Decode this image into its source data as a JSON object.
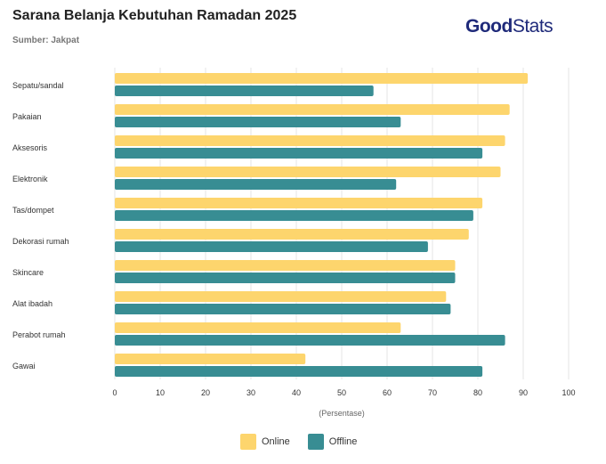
{
  "header": {
    "title": "Sarana Belanja Kebutuhan Ramadan 2025",
    "subtitle": "Sumber: Jakpat",
    "logo": "GoodStats"
  },
  "chart_data": {
    "type": "bar",
    "orientation": "horizontal",
    "title": "Sarana Belanja Kebutuhan Ramadan 2025",
    "xlabel": "(Persentase)",
    "xlim": [
      0,
      100
    ],
    "xticks": [
      0,
      10,
      20,
      30,
      40,
      50,
      60,
      70,
      80,
      90,
      100
    ],
    "grid": true,
    "legend_position": "bottom",
    "categories": [
      "Sepatu/sandal",
      "Pakaian",
      "Aksesoris",
      "Elektronik",
      "Tas/dompet",
      "Dekorasi rumah",
      "Skincare",
      "Alat ibadah",
      "Perabot rumah",
      "Gawai"
    ],
    "series": [
      {
        "name": "Online",
        "color": "#fdd56d",
        "values": [
          91,
          87,
          86,
          85,
          81,
          78,
          75,
          73,
          63,
          42
        ]
      },
      {
        "name": "Offline",
        "color": "#388d93",
        "values": [
          57,
          63,
          81,
          62,
          79,
          69,
          75,
          74,
          86,
          81
        ]
      }
    ]
  }
}
